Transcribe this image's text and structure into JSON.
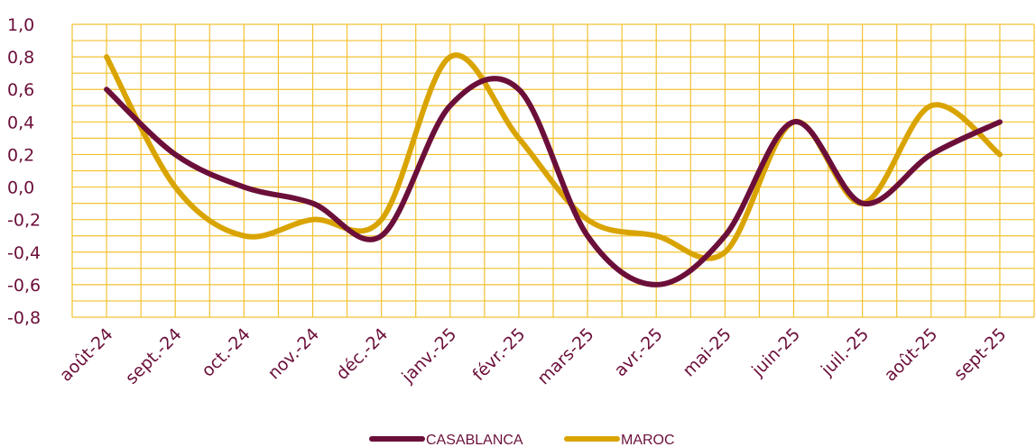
{
  "chart_data": {
    "type": "line",
    "title": "",
    "xlabel": "",
    "ylabel": "",
    "categories": [
      "août-24",
      "sept.-24",
      "oct.-24",
      "nov.-24",
      "déc.-24",
      "janv.-25",
      "févr.-25",
      "mars-25",
      "avr.-25",
      "mai-25",
      "juin-25",
      "juil.-25",
      "août-25",
      "sept-25"
    ],
    "y_ticks": [
      "1,0",
      "0,8",
      "0,6",
      "0,4",
      "0,2",
      "0,0",
      "-0,2",
      "-0,4",
      "-0,6",
      "-0,8"
    ],
    "ylim": [
      -0.8,
      1.0
    ],
    "grid": true,
    "smooth": true,
    "legend_position": "bottom",
    "series": [
      {
        "name": "CASABLANCA",
        "color": "#6b0f3a",
        "values": [
          0.6,
          0.2,
          0.0,
          -0.1,
          -0.3,
          0.5,
          0.6,
          -0.3,
          -0.6,
          -0.3,
          0.4,
          -0.1,
          0.2,
          0.4
        ]
      },
      {
        "name": "MAROC",
        "color": "#d9a400",
        "values": [
          0.8,
          0.0,
          -0.3,
          -0.2,
          -0.2,
          0.8,
          0.3,
          -0.2,
          -0.3,
          -0.4,
          0.4,
          -0.1,
          0.5,
          0.2
        ]
      }
    ],
    "grid_color": "#f2c230"
  }
}
